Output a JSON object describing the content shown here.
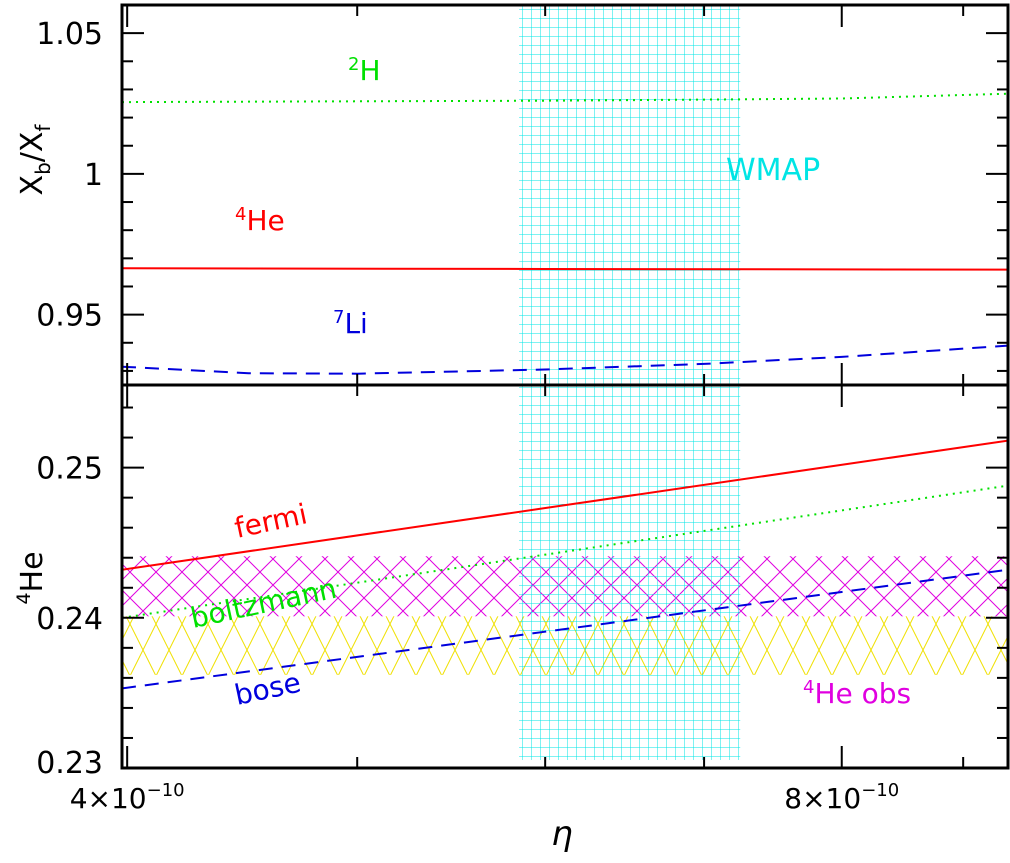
{
  "colors": {
    "fermi": "#ff0000",
    "boltzmann": "#00e000",
    "bose": "#0000dd",
    "wmap": "#00e5e5",
    "he_obs_upper": "#e000e0",
    "he_obs_lower": "#f0e000",
    "axis": "#000000"
  },
  "chart_data": [
    {
      "type": "line",
      "panel": "top",
      "ylabel_main": "X",
      "ylabel_sub_b": "b",
      "ylabel_slash": "/X",
      "ylabel_sub_f": "f",
      "ylim": [
        0.925,
        1.06
      ],
      "xlim": [
        3.98e-10,
        9.4e-10
      ],
      "xscale": "log",
      "y_ticklabels": [
        "0.95",
        "1",
        "1.05"
      ],
      "y_ticks": [
        0.95,
        1.0,
        1.05
      ],
      "series": [
        {
          "name": "2H",
          "name_sup": "2",
          "name_base": "H",
          "style": "dotted",
          "color_key": "boltzmann",
          "x": [
            3.98e-10,
            5e-10,
            6e-10,
            7e-10,
            8e-10,
            9.4e-10
          ],
          "y": [
            1.0255,
            1.0258,
            1.026,
            1.0264,
            1.0268,
            1.0285
          ]
        },
        {
          "name": "4He",
          "name_sup": "4",
          "name_base": "He",
          "style": "solid",
          "color_key": "fermi",
          "x": [
            3.98e-10,
            6e-10,
            9.4e-10
          ],
          "y": [
            0.9665,
            0.9662,
            0.966
          ]
        },
        {
          "name": "7Li",
          "name_sup": "7",
          "name_base": "Li",
          "style": "dashed",
          "color_key": "bose",
          "x": [
            3.98e-10,
            4.5e-10,
            5e-10,
            6e-10,
            7e-10,
            8e-10,
            9.4e-10
          ],
          "y": [
            0.9315,
            0.9292,
            0.929,
            0.9305,
            0.9325,
            0.935,
            0.939
          ]
        }
      ]
    },
    {
      "type": "line",
      "panel": "bottom",
      "ylabel_sup": "4",
      "ylabel_base": "He",
      "xlabel": "η",
      "ylim": [
        0.23,
        0.2555
      ],
      "xlim": [
        3.98e-10,
        9.4e-10
      ],
      "xscale": "log",
      "y_ticklabels": [
        "0.23",
        "0.24",
        "0.25"
      ],
      "y_ticks": [
        0.23,
        0.24,
        0.25
      ],
      "x_ticklabels": [
        {
          "mant": "4×10",
          "exp": "−10",
          "value": 4e-10
        },
        {
          "mant": "8×10",
          "exp": "−10",
          "value": 8e-10
        }
      ],
      "series": [
        {
          "name": "fermi",
          "style": "solid",
          "color_key": "fermi",
          "x": [
            3.98e-10,
            9.4e-10
          ],
          "y": [
            0.2432,
            0.2518
          ]
        },
        {
          "name": "boltzmann",
          "style": "dotted",
          "color_key": "boltzmann",
          "x": [
            3.98e-10,
            9.4e-10
          ],
          "y": [
            0.24,
            0.2488
          ]
        },
        {
          "name": "bose",
          "style": "dashed",
          "color_key": "bose",
          "x": [
            3.98e-10,
            9.4e-10
          ],
          "y": [
            0.2353,
            0.2432
          ]
        }
      ],
      "bands": {
        "he_obs_upper": [
          0.2401,
          0.2441
        ],
        "he_obs_lower": [
          0.2362,
          0.2401
        ],
        "he_obs_label_sup": "4",
        "he_obs_label_base": "He obs"
      }
    }
  ],
  "wmap": {
    "label": "WMAP",
    "x_range": [
      5.85e-10,
      7.25e-10
    ]
  }
}
